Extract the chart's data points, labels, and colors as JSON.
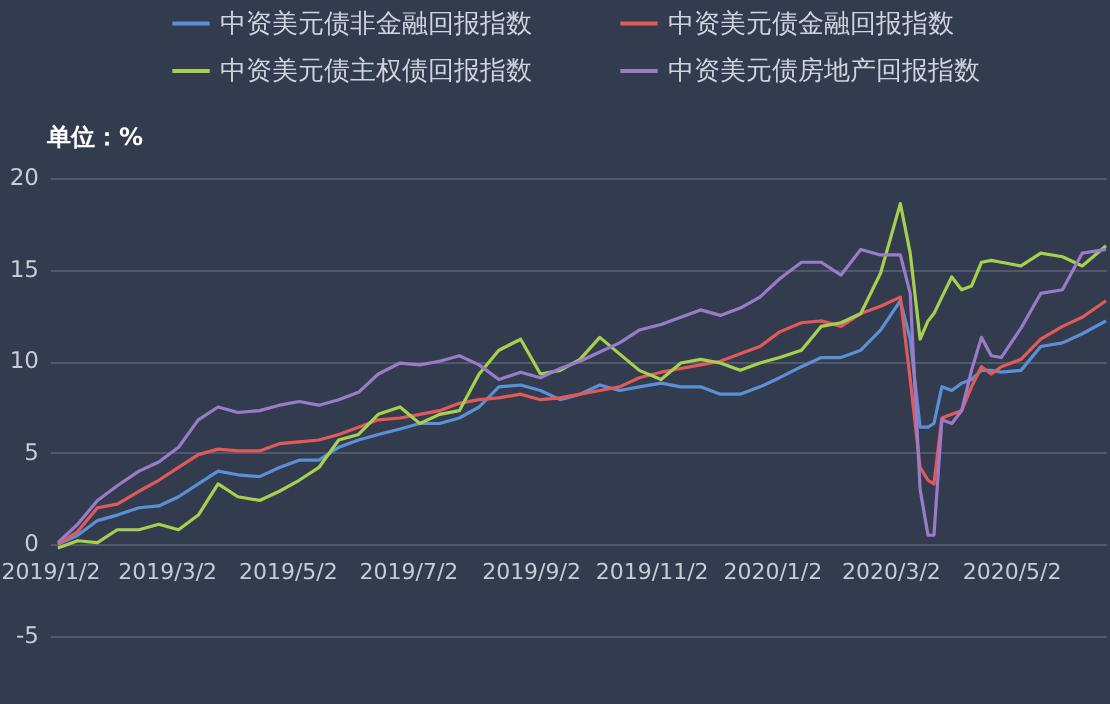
{
  "chart_data": {
    "type": "line",
    "ylabel": "单位：%",
    "legend": "top",
    "grid": "y",
    "marker": "none",
    "line_style": "solid",
    "x": [
      "2019-01-06",
      "2019-01-16",
      "2019-01-26",
      "2019-02-05",
      "2019-02-16",
      "2019-02-26",
      "2019-03-08",
      "2019-03-18",
      "2019-03-28",
      "2019-04-07",
      "2019-04-18",
      "2019-04-28",
      "2019-05-08",
      "2019-05-18",
      "2019-05-28",
      "2019-06-07",
      "2019-06-17",
      "2019-06-28",
      "2019-07-08",
      "2019-07-18",
      "2019-07-28",
      "2019-08-07",
      "2019-08-17",
      "2019-08-28",
      "2019-09-07",
      "2019-09-17",
      "2019-09-27",
      "2019-10-07",
      "2019-10-17",
      "2019-10-27",
      "2019-11-07",
      "2019-11-17",
      "2019-11-27",
      "2019-12-07",
      "2019-12-17",
      "2019-12-27",
      "2020-01-06",
      "2020-01-17",
      "2020-01-27",
      "2020-02-06",
      "2020-02-16",
      "2020-02-26",
      "2020-03-07",
      "2020-03-12",
      "2020-03-17",
      "2020-03-21",
      "2020-03-24",
      "2020-03-28",
      "2020-04-02",
      "2020-04-07",
      "2020-04-12",
      "2020-04-17",
      "2020-04-22",
      "2020-04-27",
      "2020-05-07",
      "2020-05-17",
      "2020-05-28",
      "2020-06-07",
      "2020-06-19"
    ],
    "xlim": [
      "2019-01-02",
      "2020-06-19"
    ],
    "xticks": [
      {
        "value": "2019-01-02",
        "label": "2019/1/2"
      },
      {
        "value": "2019-03-02",
        "label": "2019/3/2"
      },
      {
        "value": "2019-05-02",
        "label": "2019/5/2"
      },
      {
        "value": "2019-07-02",
        "label": "2019/7/2"
      },
      {
        "value": "2019-09-02",
        "label": "2019/9/2"
      },
      {
        "value": "2019-11-02",
        "label": "2019/11/2"
      },
      {
        "value": "2020-01-02",
        "label": "2020/1/2"
      },
      {
        "value": "2020-03-02",
        "label": "2020/3/2"
      },
      {
        "value": "2020-05-02",
        "label": "2020/5/2"
      }
    ],
    "ylim": [
      -5,
      20
    ],
    "yticks": [
      -5,
      0,
      5,
      10,
      15,
      20
    ],
    "series": [
      {
        "name": "中资美元债非金融回报指数",
        "color": "#5b8fd6",
        "values": [
          0,
          0.5,
          1.3,
          1.6,
          2.0,
          2.1,
          2.6,
          3.3,
          4.0,
          3.8,
          3.7,
          4.2,
          4.6,
          4.6,
          5.3,
          5.7,
          6.0,
          6.3,
          6.6,
          6.6,
          6.9,
          7.5,
          8.6,
          8.7,
          8.4,
          7.9,
          8.2,
          8.7,
          8.4,
          8.6,
          8.8,
          8.6,
          8.6,
          8.2,
          8.2,
          8.6,
          9.1,
          9.7,
          10.2,
          10.2,
          10.6,
          11.7,
          13.3,
          11.2,
          6.4,
          6.4,
          6.6,
          8.6,
          8.4,
          8.8,
          9.0,
          9.5,
          9.5,
          9.4,
          9.5,
          10.8,
          11.0,
          11.5,
          12.2
        ]
      },
      {
        "name": "中资美元债金融回报指数",
        "color": "#e05a5a",
        "values": [
          0,
          0.7,
          2.0,
          2.2,
          2.9,
          3.5,
          4.2,
          4.9,
          5.2,
          5.1,
          5.1,
          5.5,
          5.6,
          5.7,
          6.0,
          6.4,
          6.8,
          6.9,
          7.1,
          7.3,
          7.7,
          7.9,
          8.0,
          8.2,
          7.9,
          8.0,
          8.2,
          8.4,
          8.6,
          9.1,
          9.4,
          9.6,
          9.8,
          10.0,
          10.4,
          10.8,
          11.6,
          12.1,
          12.2,
          11.9,
          12.6,
          13.0,
          13.5,
          9.0,
          4.2,
          3.5,
          3.3,
          6.9,
          7.1,
          7.3,
          8.6,
          9.7,
          9.3,
          9.7,
          10.1,
          11.2,
          11.9,
          12.4,
          13.3
        ]
      },
      {
        "name": "中资美元债主权债回报指数",
        "color": "#a6d04f",
        "values": [
          -0.2,
          0.2,
          0.1,
          0.8,
          0.8,
          1.1,
          0.8,
          1.6,
          3.3,
          2.6,
          2.4,
          2.9,
          3.5,
          4.2,
          5.7,
          6.0,
          7.1,
          7.5,
          6.6,
          7.1,
          7.3,
          9.3,
          10.6,
          11.2,
          9.3,
          9.5,
          10.1,
          11.3,
          10.4,
          9.5,
          9.0,
          9.9,
          10.1,
          9.9,
          9.5,
          9.9,
          10.2,
          10.6,
          11.9,
          12.1,
          12.6,
          14.8,
          18.6,
          15.9,
          11.2,
          12.2,
          12.6,
          13.5,
          14.6,
          13.9,
          14.1,
          15.4,
          15.5,
          15.4,
          15.2,
          15.9,
          15.7,
          15.2,
          16.3
        ]
      },
      {
        "name": "中资美元债房地产回报指数",
        "color": "#9b7bc8",
        "values": [
          0.1,
          1.1,
          2.4,
          3.2,
          4.0,
          4.5,
          5.3,
          6.8,
          7.5,
          7.2,
          7.3,
          7.6,
          7.8,
          7.6,
          7.9,
          8.3,
          9.3,
          9.9,
          9.8,
          10.0,
          10.3,
          9.8,
          9.0,
          9.4,
          9.1,
          9.6,
          10.0,
          10.5,
          11.0,
          11.7,
          12.0,
          12.4,
          12.8,
          12.5,
          12.9,
          13.5,
          14.5,
          15.4,
          15.4,
          14.7,
          16.1,
          15.8,
          15.8,
          13.7,
          3.0,
          0.5,
          0.5,
          6.8,
          6.6,
          7.3,
          9.5,
          11.3,
          10.3,
          10.2,
          11.8,
          13.7,
          13.9,
          15.9,
          16.1
        ]
      }
    ]
  }
}
